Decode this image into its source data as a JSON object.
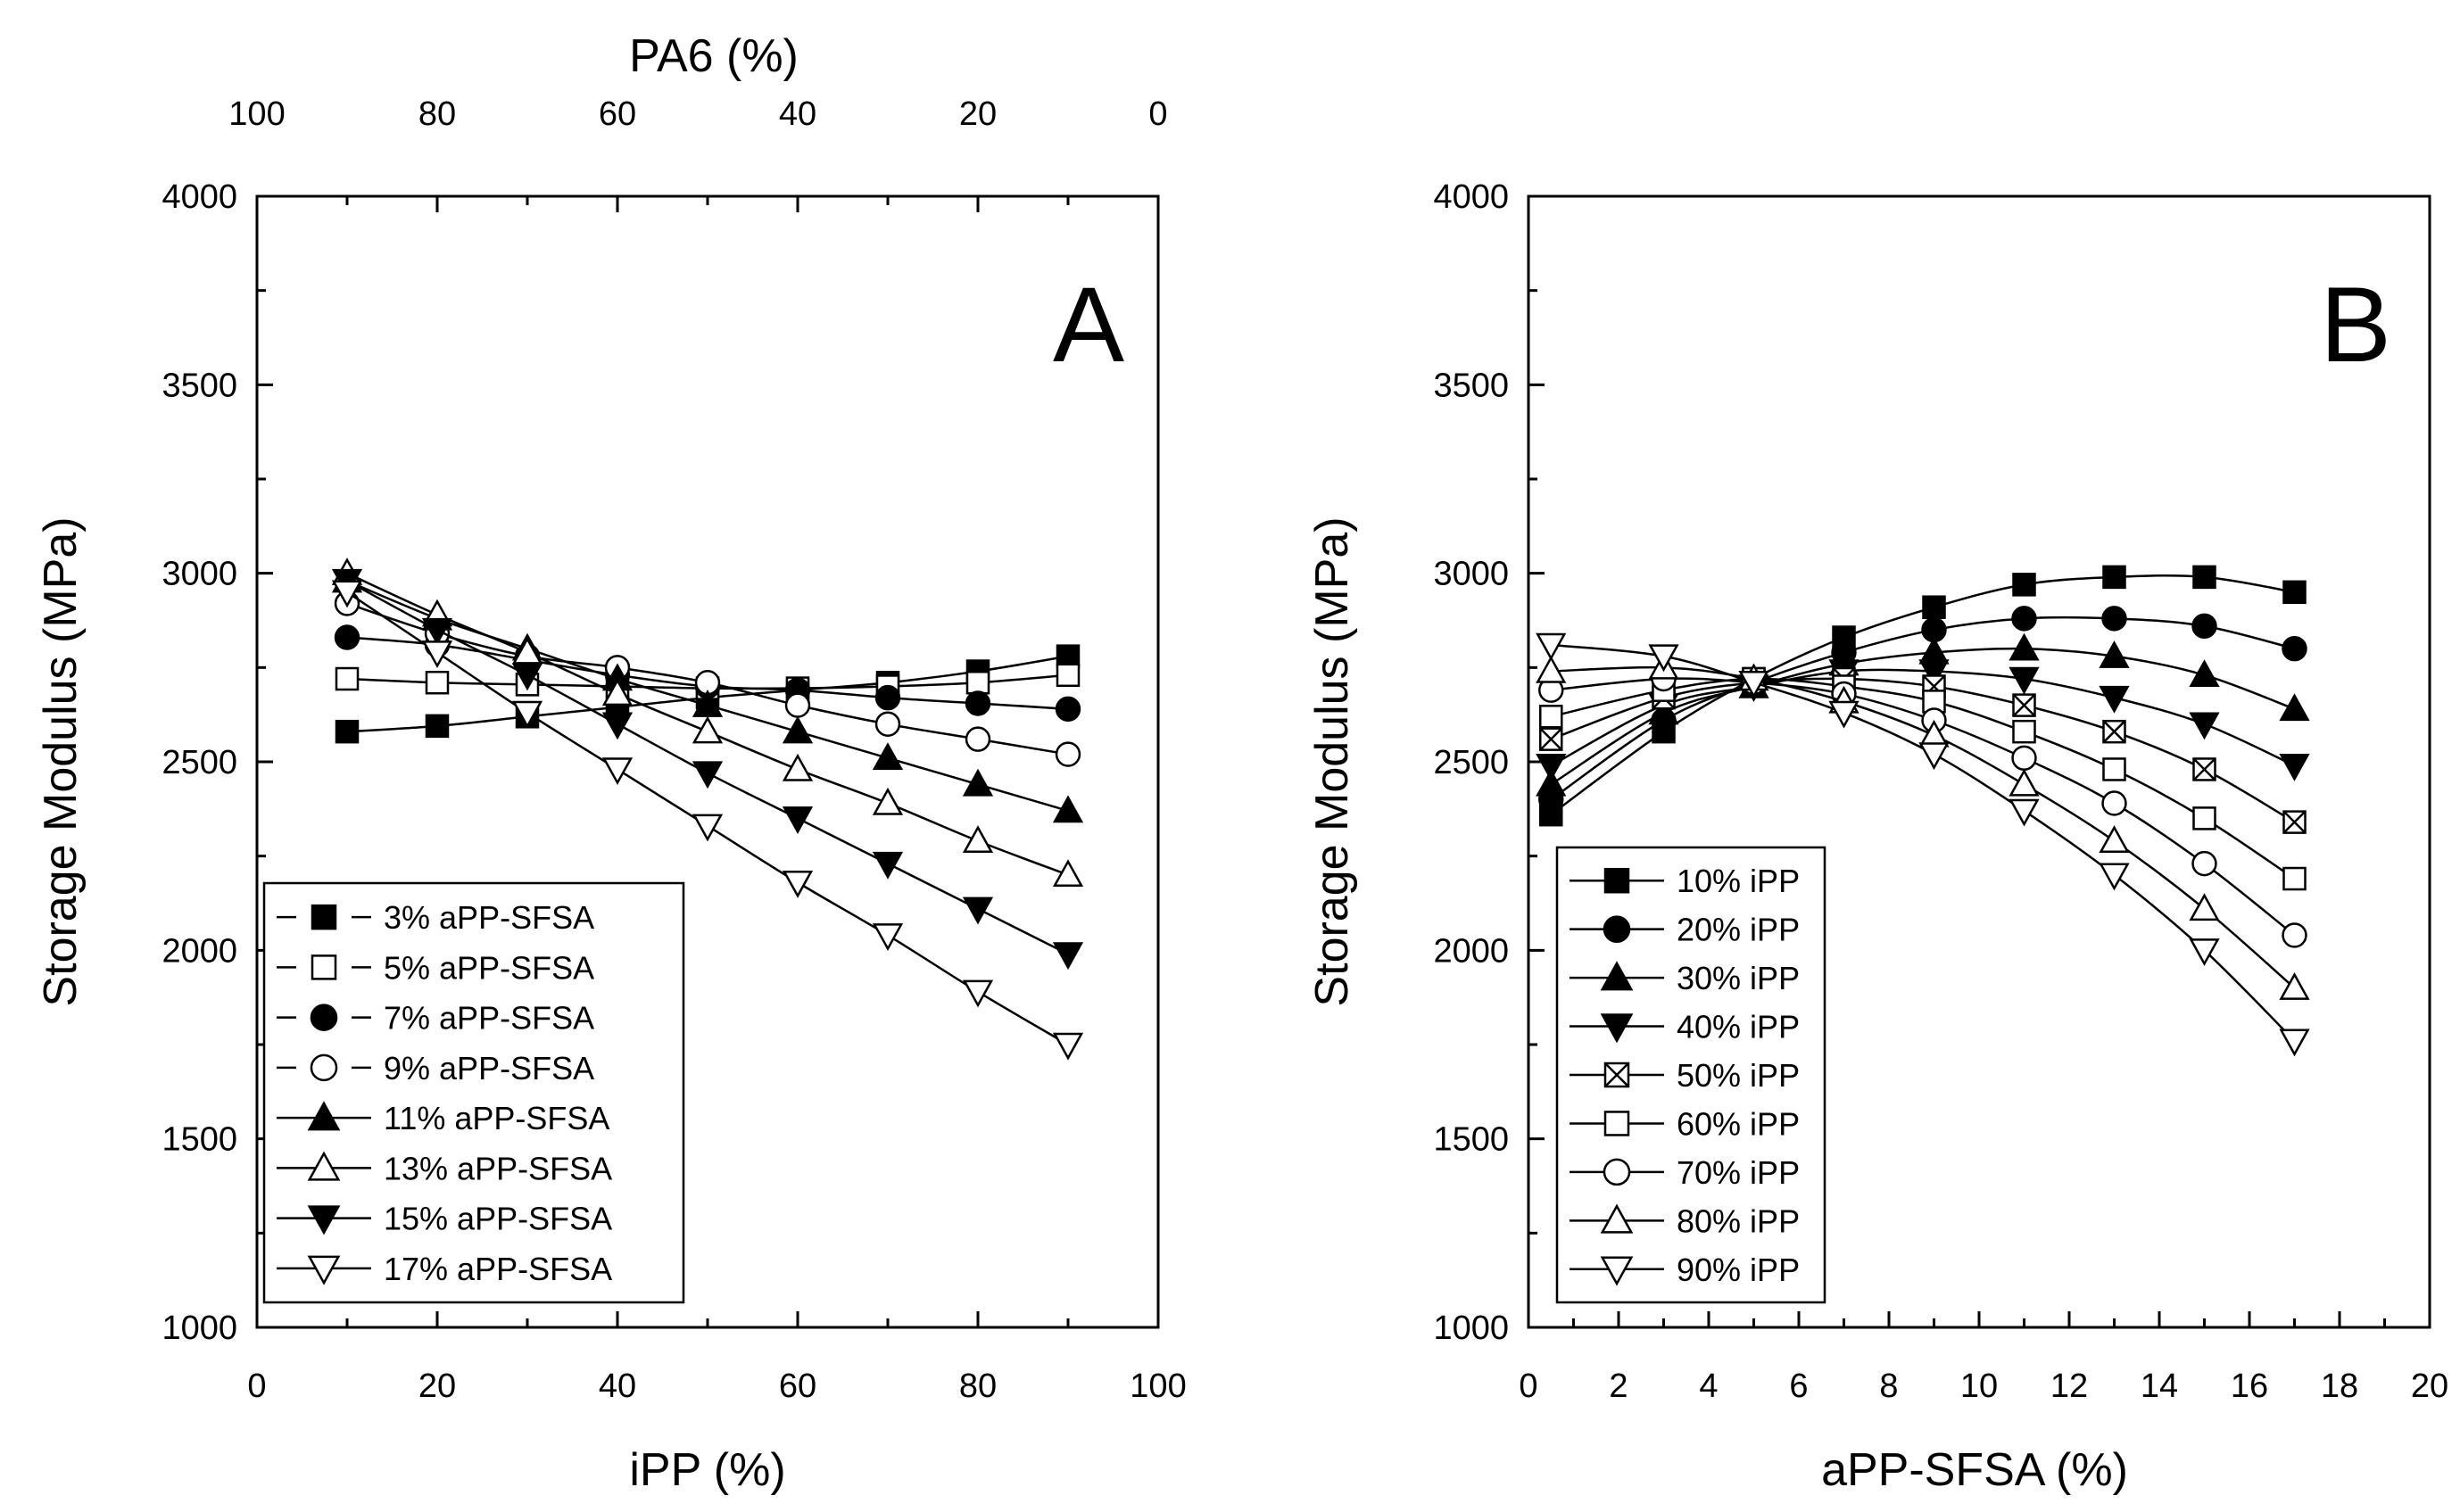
{
  "chart_data": [
    {
      "panel_label": "A",
      "type": "line",
      "xlabel": "iPP (%)",
      "ylabel": "Storage Modulus (MPa)",
      "top_xlabel": "PA6 (%)",
      "xlim": [
        0,
        100
      ],
      "ylim": [
        1000,
        4000
      ],
      "top_xlim": [
        100,
        0
      ],
      "xticks": [
        0,
        20,
        40,
        60,
        80,
        100
      ],
      "yticks": [
        1000,
        1500,
        2000,
        2500,
        3000,
        3500,
        4000
      ],
      "top_xticks": [
        100,
        80,
        60,
        40,
        20,
        0
      ],
      "legend_position": "bottom-left",
      "x": [
        10,
        20,
        30,
        40,
        50,
        60,
        70,
        80,
        90
      ],
      "series": [
        {
          "name": "3% aPP-SFSA",
          "marker": "square-filled",
          "line": "dashed",
          "values": [
            2580,
            2595,
            2620,
            2645,
            2670,
            2690,
            2710,
            2740,
            2780
          ]
        },
        {
          "name": "5% aPP-SFSA",
          "marker": "square-open",
          "line": "dashed",
          "values": [
            2720,
            2710,
            2705,
            2700,
            2695,
            2695,
            2700,
            2710,
            2730
          ]
        },
        {
          "name": "7% aPP-SFSA",
          "marker": "circle-filled",
          "line": "dashed",
          "values": [
            2830,
            2810,
            2770,
            2730,
            2700,
            2690,
            2670,
            2655,
            2640
          ]
        },
        {
          "name": "9% aPP-SFSA",
          "marker": "circle-open",
          "line": "dashed",
          "values": [
            2920,
            2840,
            2780,
            2750,
            2710,
            2650,
            2600,
            2560,
            2520
          ]
        },
        {
          "name": "11% aPP-SFSA",
          "marker": "triangle-up-filled",
          "line": "solid",
          "values": [
            2980,
            2880,
            2800,
            2720,
            2650,
            2580,
            2510,
            2440,
            2370
          ]
        },
        {
          "name": "13% aPP-SFSA",
          "marker": "triangle-up-open",
          "line": "solid",
          "values": [
            3000,
            2890,
            2790,
            2680,
            2580,
            2480,
            2390,
            2290,
            2200
          ]
        },
        {
          "name": "15% aPP-SFSA",
          "marker": "triangle-down-filled",
          "line": "solid",
          "values": [
            2980,
            2850,
            2730,
            2600,
            2470,
            2350,
            2230,
            2110,
            1990
          ]
        },
        {
          "name": "17% aPP-SFSA",
          "marker": "triangle-down-open",
          "line": "solid",
          "values": [
            2950,
            2790,
            2630,
            2480,
            2330,
            2180,
            2040,
            1890,
            1750
          ]
        }
      ]
    },
    {
      "panel_label": "B",
      "type": "line",
      "xlabel": "aPP-SFSA (%)",
      "ylabel": "Storage Modulus (MPa)",
      "xlim": [
        0,
        20
      ],
      "ylim": [
        1000,
        4000
      ],
      "xticks": [
        0,
        2,
        4,
        6,
        8,
        10,
        12,
        14,
        16,
        18,
        20
      ],
      "yticks": [
        1000,
        1500,
        2000,
        2500,
        3000,
        3500,
        4000
      ],
      "legend_position": "bottom-left",
      "x": [
        0.5,
        3,
        5,
        7,
        9,
        11,
        13,
        15,
        17
      ],
      "series": [
        {
          "name": "10% iPP",
          "marker": "square-filled",
          "values": [
            2360,
            2580,
            2720,
            2830,
            2910,
            2970,
            2990,
            2990,
            2950
          ]
        },
        {
          "name": "20% iPP",
          "marker": "circle-filled",
          "values": [
            2400,
            2610,
            2710,
            2790,
            2850,
            2880,
            2880,
            2860,
            2800
          ]
        },
        {
          "name": "30% iPP",
          "marker": "triangle-up-filled",
          "values": [
            2440,
            2630,
            2700,
            2760,
            2790,
            2800,
            2780,
            2730,
            2640
          ]
        },
        {
          "name": "40% iPP",
          "marker": "triangle-down-filled",
          "values": [
            2490,
            2650,
            2700,
            2740,
            2740,
            2720,
            2670,
            2600,
            2490
          ]
        },
        {
          "name": "50% iPP",
          "marker": "square-x",
          "values": [
            2560,
            2670,
            2710,
            2720,
            2700,
            2650,
            2580,
            2480,
            2340
          ]
        },
        {
          "name": "60% iPP",
          "marker": "square-open",
          "values": [
            2620,
            2690,
            2720,
            2700,
            2660,
            2580,
            2480,
            2350,
            2190
          ]
        },
        {
          "name": "70% iPP",
          "marker": "circle-open",
          "values": [
            2690,
            2720,
            2710,
            2680,
            2610,
            2510,
            2390,
            2230,
            2040
          ]
        },
        {
          "name": "80% iPP",
          "marker": "triangle-up-open",
          "values": [
            2740,
            2750,
            2720,
            2660,
            2570,
            2440,
            2290,
            2110,
            1900
          ]
        },
        {
          "name": "90% iPP",
          "marker": "triangle-down-open",
          "values": [
            2810,
            2780,
            2710,
            2630,
            2520,
            2370,
            2200,
            2000,
            1760
          ]
        }
      ]
    }
  ]
}
